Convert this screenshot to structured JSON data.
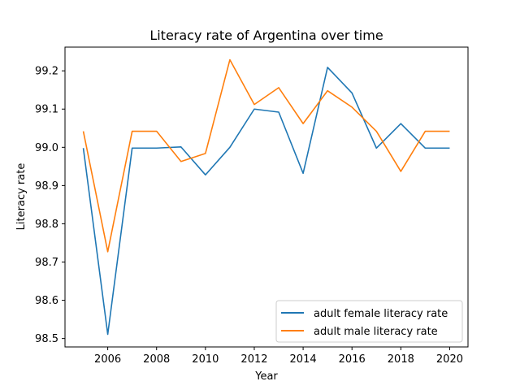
{
  "chart_data": {
    "type": "line",
    "title": "Literacy rate of Argentina over time",
    "xlabel": "Year",
    "ylabel": "Literacy rate",
    "x": [
      2005,
      2006,
      2007,
      2008,
      2009,
      2010,
      2011,
      2012,
      2013,
      2014,
      2015,
      2016,
      2017,
      2018,
      2019,
      2020
    ],
    "xlim": [
      2004.25,
      2020.75
    ],
    "ylim": [
      98.478,
      99.262
    ],
    "xticks": [
      2006,
      2008,
      2010,
      2012,
      2014,
      2016,
      2018,
      2020
    ],
    "yticks": [
      98.5,
      98.6,
      98.7,
      98.8,
      98.9,
      99.0,
      99.1,
      99.2
    ],
    "grid": false,
    "legend_position": "lower-right",
    "series": [
      {
        "name": "adult female literacy rate",
        "color": "#1f77b4",
        "values": [
          98.998,
          98.511,
          98.998,
          98.998,
          99.001,
          98.928,
          99.0,
          99.1,
          99.092,
          98.932,
          99.209,
          99.142,
          98.998,
          99.062,
          98.998,
          98.998
        ]
      },
      {
        "name": "adult male literacy rate",
        "color": "#ff7f0e",
        "values": [
          99.042,
          98.727,
          99.042,
          99.042,
          98.963,
          98.984,
          99.229,
          99.112,
          99.156,
          99.062,
          99.148,
          99.105,
          99.042,
          98.937,
          99.042,
          99.042
        ]
      }
    ]
  }
}
